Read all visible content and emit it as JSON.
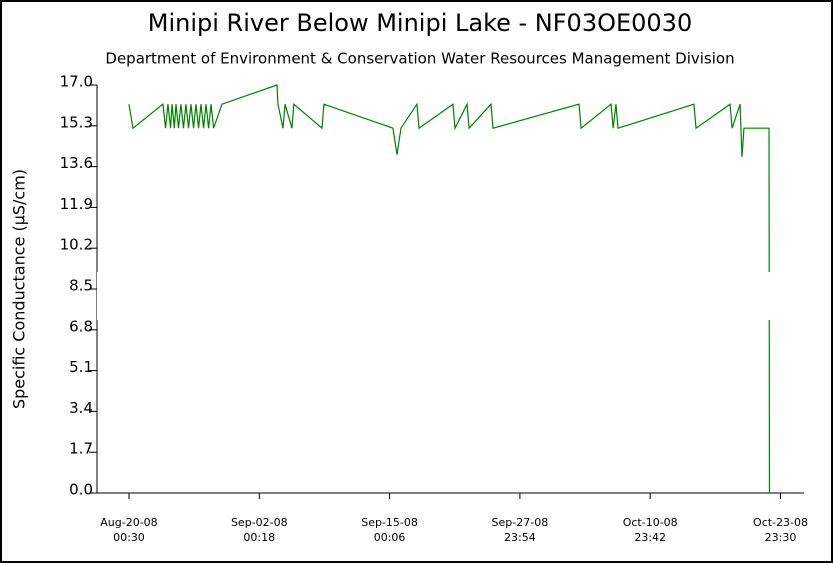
{
  "chart_data": {
    "type": "line",
    "title": "Minipi River Below Minipi Lake - NF03OE0030",
    "subtitle": "Department of Environment & Conservation Water Resources Management Division",
    "y_label": "Specific Conductance (µS/cm)",
    "x": [
      "2008-08-20T00:30",
      "2008-08-20T10:00",
      "2008-08-23T09:50",
      "2008-08-23T16:00",
      "2008-08-23T21:50",
      "2008-08-24T04:00",
      "2008-08-24T07:30",
      "2008-08-24T13:00",
      "2008-08-24T17:00",
      "2008-08-24T23:00",
      "2008-08-25T04:50",
      "2008-08-25T11:00",
      "2008-08-25T16:50",
      "2008-08-25T23:00",
      "2008-08-26T04:50",
      "2008-08-26T11:00",
      "2008-08-26T16:50",
      "2008-08-26T23:00",
      "2008-08-27T04:50",
      "2008-08-27T11:00",
      "2008-08-27T16:50",
      "2008-08-27T23:00",
      "2008-08-28T04:50",
      "2008-08-28T11:00",
      "2008-08-29T07:00",
      "2008-09-03T18:40",
      "2008-09-03T21:00",
      "2008-09-04T09:00",
      "2008-09-04T14:00",
      "2008-09-05T06:30",
      "2008-09-05T11:00",
      "2008-09-08T06:20",
      "2008-09-08T11:00",
      "2008-09-15T08:10",
      "2008-09-15T17:50",
      "2008-09-16T03:20",
      "2008-09-17T17:30",
      "2008-09-17T22:30",
      "2008-09-21T07:40",
      "2008-09-21T12:40",
      "2008-09-22T17:20",
      "2008-09-22T22:20",
      "2008-09-25T02:40",
      "2008-09-25T07:40",
      "2008-10-03T21:20",
      "2008-10-04T02:20",
      "2008-10-07T02:00",
      "2008-10-07T07:00",
      "2008-10-07T13:40",
      "2008-10-07T18:40",
      "2008-10-15T08:20",
      "2008-10-15T13:20",
      "2008-10-18T22:40",
      "2008-10-19T03:40",
      "2008-10-19T22:40",
      "2008-10-20T03:20",
      "2008-10-20T08:00",
      "2008-10-22T20:00",
      "2008-10-22T21:00"
    ],
    "series": [
      {
        "name": "Specific Conductance",
        "color": "#008000",
        "values": [
          16.2,
          15.2,
          16.2,
          15.2,
          16.2,
          15.2,
          16.2,
          15.2,
          16.2,
          15.2,
          16.2,
          15.2,
          16.2,
          15.2,
          16.2,
          15.2,
          16.2,
          15.2,
          16.2,
          15.2,
          16.2,
          15.2,
          16.2,
          15.2,
          16.2,
          17.0,
          16.2,
          15.2,
          16.2,
          15.2,
          16.2,
          15.2,
          16.2,
          15.2,
          14.1,
          15.2,
          16.2,
          15.2,
          16.2,
          15.2,
          16.2,
          15.2,
          16.2,
          15.2,
          16.2,
          15.2,
          16.2,
          15.2,
          16.2,
          15.2,
          16.2,
          15.2,
          16.2,
          15.2,
          16.2,
          14.0,
          15.2,
          15.2,
          0
        ]
      }
    ],
    "xlim": [
      "2008-08-16T20:00",
      "2008-10-26T07:40"
    ],
    "xticks": [
      {
        "value": "2008-08-20T00:30",
        "label": "Aug-20-08\n00:30"
      },
      {
        "value": "2008-09-02T00:18",
        "label": "Sep-02-08\n00:18"
      },
      {
        "value": "2008-09-15T00:06",
        "label": "Sep-15-08\n00:06"
      },
      {
        "value": "2008-09-27T23:54",
        "label": "Sep-27-08\n23:54"
      },
      {
        "value": "2008-10-10T23:42",
        "label": "Oct-10-08\n23:42"
      },
      {
        "value": "2008-10-23T23:30",
        "label": "Oct-23-08\n23:30"
      }
    ],
    "ylim": [
      0,
      17
    ],
    "yticks": [
      {
        "value": 0,
        "label": "0.0"
      },
      1.7,
      3.4,
      5.1,
      6.8,
      8.5,
      10.2,
      11.9,
      13.6,
      15.3,
      {
        "value": 17,
        "label": "17.0"
      }
    ]
  }
}
